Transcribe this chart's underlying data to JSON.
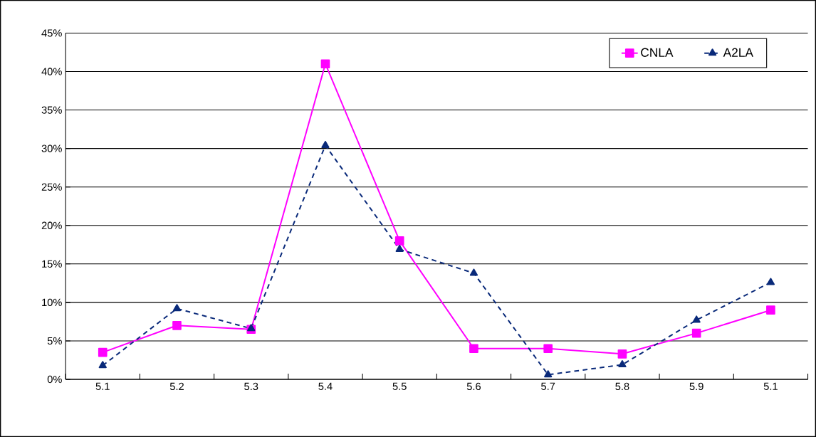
{
  "chart_data": {
    "type": "line",
    "categories": [
      "5.1",
      "5.2",
      "5.3",
      "5.4",
      "5.5",
      "5.6",
      "5.7",
      "5.8",
      "5.9",
      "5.1"
    ],
    "series": [
      {
        "name": "CNLA",
        "color": "#ff00ff",
        "marker": "square",
        "line_style": "solid",
        "values": [
          3.5,
          7,
          6.5,
          41,
          18,
          4,
          4,
          3.3,
          6,
          9
        ]
      },
      {
        "name": "A2LA",
        "color": "#0a2a7a",
        "marker": "triangle",
        "line_style": "dashed",
        "values": [
          1.8,
          9.2,
          6.6,
          30.4,
          16.9,
          13.8,
          0.6,
          1.9,
          7.7,
          12.6
        ]
      }
    ],
    "ylim": [
      0,
      45
    ],
    "yticks": [
      {
        "value": 0,
        "label": "0%"
      },
      {
        "value": 5,
        "label": "5%"
      },
      {
        "value": 10,
        "label": "10%"
      },
      {
        "value": 15,
        "label": "15%"
      },
      {
        "value": 20,
        "label": "20%"
      },
      {
        "value": 25,
        "label": "25%"
      },
      {
        "value": 30,
        "label": "30%"
      },
      {
        "value": 35,
        "label": "35%"
      },
      {
        "value": 40,
        "label": "40%"
      },
      {
        "value": 45,
        "label": "45%"
      }
    ],
    "grid": "y",
    "legend": "top right"
  }
}
